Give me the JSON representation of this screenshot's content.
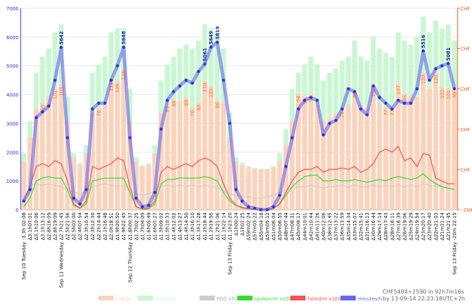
{
  "chart_data": {
    "type": "combo",
    "footer": "CHF5404+2590 in 92h7m16s by 13-09-14 22:23:18UTC+2h",
    "categories": [
      "Sep 10 Tuesday -3.3h 02:08",
      "Δ3.1h07:01",
      "Δ3.1h10:06",
      "Δ3.1h13:12",
      "Δ2.8h16:09",
      "Δ2.8h19:09",
      "Sep 11 Wednesday Δ2.7h21:45",
      "Δ2.5h21:56",
      "Δ2.5h03:00",
      "Δ2.4h07:54",
      "Δ2.3h10:54",
      "Δ2.3h12:30",
      "Δ2.2h14:44",
      "Δ2.1h16:48",
      "Δ2.0h18:51",
      "Δ1.9h20:50",
      "Δ1.9h22:45",
      "Sep 12 Thursday Δ1.8h00:37",
      "Δ1.7h02:25",
      "Δ1.7h04:09",
      "Δ1.6h05:49",
      "Δ1.6h07:27",
      "Δ1.5h09:02",
      "Δ1.5h10:33",
      "Δ1.4h12:02",
      "Δ1.4h13:27",
      "Δ1.4h14:50",
      "Δ1.3h16:10",
      "Δ1.3h17:28",
      "Δ1.2h18:44",
      "Δ1.2h19:56",
      "Δ1.2h21:06",
      "Δ1.1h22:14",
      "Sep 13 Friday Δ1.1h23:20",
      "Δ1h00:24",
      "Δ1h01:25",
      "Δ59m02:24",
      "Δ57m03:22",
      "Δ55m04:18",
      "Δ53m05:12",
      "Δ51m06:04",
      "Δ50m06:55",
      "Δ48m07:44",
      "Δ47m08:31",
      "Δ45m09:17",
      "Δ44m10:01",
      "Δ42m10:44",
      "Δ41m11:26",
      "Δ40m12:06",
      "Δ38m12:45",
      "Δ37m13:22",
      "Δ36m13:59",
      "Δ35m14:34",
      "Δ33m15:07",
      "Δ32m15:41",
      "Δ31m16:13",
      "Δ30m16:44",
      "Δ29m17:14",
      "Δ28m17:43",
      "Δ28m18:11",
      "Δ27m18:39",
      "Δ26m19:06",
      "Δ25m19:29",
      "Δ24m19:54",
      "Δ23m20:17",
      "Δ23m20:40",
      "Δ22m21:03",
      "Δ21m21:24",
      "Δ21m21:45",
      "Sep 13 Friday -20m 22:15"
    ],
    "ylim": [
      0,
      7000
    ],
    "yticks": [
      0,
      1000,
      2000,
      3000,
      4000,
      5000,
      6000,
      7000
    ],
    "y2lim": [
      -50,
      200
    ],
    "y2ticks": [
      {
        "value": -50,
        "label": "- CHF 50"
      },
      {
        "value": 0,
        "label": "CHF 0"
      },
      {
        "value": 50,
        "label": "CHF 50"
      },
      {
        "value": 100,
        "label": "CHF 100"
      },
      {
        "value": 150,
        "label": "CHF 150"
      },
      {
        "value": 200,
        "label": "CHF 200"
      }
    ],
    "grid": true,
    "series": [
      {
        "name": "margin/h",
        "type": "bar",
        "axis": "y2",
        "color": "#c9f7d2",
        "values": [
          20,
          60,
          120,
          140,
          150,
          170,
          180,
          90,
          20,
          8,
          30,
          120,
          130,
          140,
          170,
          175,
          175,
          100,
          15,
          5,
          8,
          30,
          110,
          130,
          140,
          150,
          155,
          150,
          160,
          180,
          175,
          170,
          150,
          70,
          15,
          8,
          4,
          2,
          1,
          1,
          4,
          20,
          50,
          100,
          120,
          130,
          140,
          130,
          110,
          120,
          125,
          135,
          140,
          160,
          140,
          135,
          165,
          150,
          145,
          140,
          170,
          160,
          155,
          165,
          190,
          170,
          185,
          175,
          180,
          160
        ]
      },
      {
        "name": "cost/h",
        "type": "bar",
        "axis": "y2",
        "color": "#fbd3bd",
        "values": [
          10,
          40,
          75,
          83,
          90,
          101,
          105,
          60,
          15,
          5,
          20,
          70,
          76,
          80,
          111,
          109,
          125,
          60,
          10,
          3,
          5,
          20,
          70,
          81,
          88,
          85,
          89,
          76,
          83,
          110,
          103,
          86,
          83,
          40,
          10,
          5,
          2,
          1,
          0,
          0,
          2,
          10,
          30,
          60,
          94,
          91,
          94,
          80,
          60,
          65,
          70,
          74,
          80,
          99,
          80,
          77,
          104,
          82,
          77,
          77,
          107,
          95,
          91,
          90,
          120,
          100,
          120,
          102,
          101,
          99
        ],
        "value_labels": [
          null,
          null,
          null,
          "83",
          null,
          "101",
          "105",
          null,
          null,
          null,
          null,
          null,
          "76",
          null,
          "111",
          "109",
          "125",
          null,
          null,
          null,
          null,
          null,
          null,
          "81",
          "88",
          null,
          "89",
          "76",
          "83",
          "110",
          "103",
          "86",
          null,
          null,
          null,
          null,
          null,
          null,
          null,
          null,
          null,
          null,
          null,
          null,
          "94",
          "91",
          "94",
          null,
          null,
          null,
          null,
          "74",
          null,
          "99",
          null,
          null,
          "104",
          null,
          "77",
          "77",
          "107",
          "95",
          null,
          null,
          "120",
          null,
          "120",
          "102",
          "101",
          "99"
        ]
      },
      {
        "name": "PDD x50",
        "type": "line",
        "color": "#cccccc",
        "values": [
          800,
          850,
          900,
          850,
          900,
          850,
          800,
          700,
          600,
          550,
          650,
          800,
          850,
          900,
          850,
          800,
          850,
          700,
          550,
          500,
          550,
          650,
          800,
          850,
          800,
          850,
          800,
          850,
          800,
          850,
          800,
          750,
          650,
          550,
          500,
          450,
          450,
          400,
          400,
          450,
          500,
          600,
          700,
          750,
          800,
          800,
          850,
          800,
          750,
          800,
          800,
          850,
          800,
          850,
          800,
          800,
          850,
          800,
          850,
          800,
          850,
          800,
          850,
          800,
          900,
          850,
          800,
          800,
          750,
          700
        ]
      },
      {
        "name": "spoken/m x100",
        "type": "line",
        "color": "#33dd33",
        "values": [
          100,
          400,
          1000,
          1100,
          1150,
          1100,
          1100,
          700,
          150,
          50,
          200,
          1000,
          1050,
          1100,
          1100,
          1100,
          1100,
          600,
          100,
          20,
          30,
          200,
          900,
          1050,
          1050,
          1100,
          1100,
          1100,
          1100,
          1150,
          1100,
          1000,
          600,
          300,
          150,
          80,
          40,
          20,
          10,
          10,
          50,
          200,
          500,
          800,
          1000,
          1150,
          1200,
          1200,
          1000,
          1000,
          1050,
          1000,
          1000,
          1050,
          1000,
          950,
          1000,
          1050,
          1000,
          1100,
          1150,
          1100,
          1050,
          1100,
          1250,
          1050,
          900,
          800,
          750,
          700
        ]
      },
      {
        "name": "failed/m x100",
        "type": "line",
        "color": "#ee5555",
        "values": [
          300,
          800,
          1500,
          1600,
          1500,
          1700,
          1600,
          1000,
          200,
          50,
          300,
          1500,
          1400,
          1500,
          1600,
          1800,
          1700,
          800,
          100,
          30,
          50,
          300,
          1300,
          1500,
          1400,
          1500,
          1600,
          1500,
          1700,
          1800,
          1700,
          1500,
          900,
          400,
          150,
          60,
          30,
          10,
          5,
          5,
          40,
          200,
          600,
          1000,
          1300,
          1400,
          1400,
          1500,
          1300,
          1400,
          1400,
          1450,
          1400,
          1500,
          1300,
          1400,
          1600,
          2000,
          2100,
          2000,
          2200,
          1700,
          1800,
          1500,
          1950,
          1900,
          1100,
          1000,
          900,
          900
        ]
      },
      {
        "name": "minutes/h",
        "type": "line",
        "color": "#6666ee",
        "values": [
          300,
          700,
          3200,
          3400,
          3600,
          4500,
          5642,
          2500,
          400,
          200,
          700,
          3500,
          3700,
          3700,
          4500,
          5000,
          5648,
          2500,
          400,
          100,
          150,
          600,
          2800,
          3800,
          4100,
          4300,
          4500,
          4400,
          4800,
          5061,
          5649,
          5819,
          4500,
          3000,
          700,
          300,
          100,
          50,
          0,
          0,
          100,
          500,
          1500,
          2500,
          3500,
          3800,
          3900,
          3800,
          2600,
          3000,
          3100,
          3500,
          4200,
          4100,
          3500,
          3300,
          4300,
          3900,
          3700,
          3500,
          3800,
          3700,
          3700,
          4200,
          5516,
          4500,
          4900,
          5000,
          5081,
          4200
        ],
        "value_labels": [
          null,
          null,
          null,
          null,
          null,
          null,
          "5642",
          null,
          null,
          null,
          null,
          null,
          null,
          null,
          null,
          null,
          "5648",
          null,
          null,
          null,
          null,
          null,
          null,
          null,
          null,
          null,
          null,
          null,
          null,
          "5061",
          "5649",
          "5819",
          null,
          null,
          null,
          null,
          null,
          null,
          null,
          null,
          null,
          null,
          null,
          null,
          null,
          null,
          null,
          null,
          null,
          null,
          null,
          null,
          null,
          null,
          null,
          null,
          null,
          null,
          null,
          null,
          null,
          null,
          null,
          null,
          "5516",
          null,
          null,
          null,
          "5081",
          null
        ]
      }
    ]
  }
}
